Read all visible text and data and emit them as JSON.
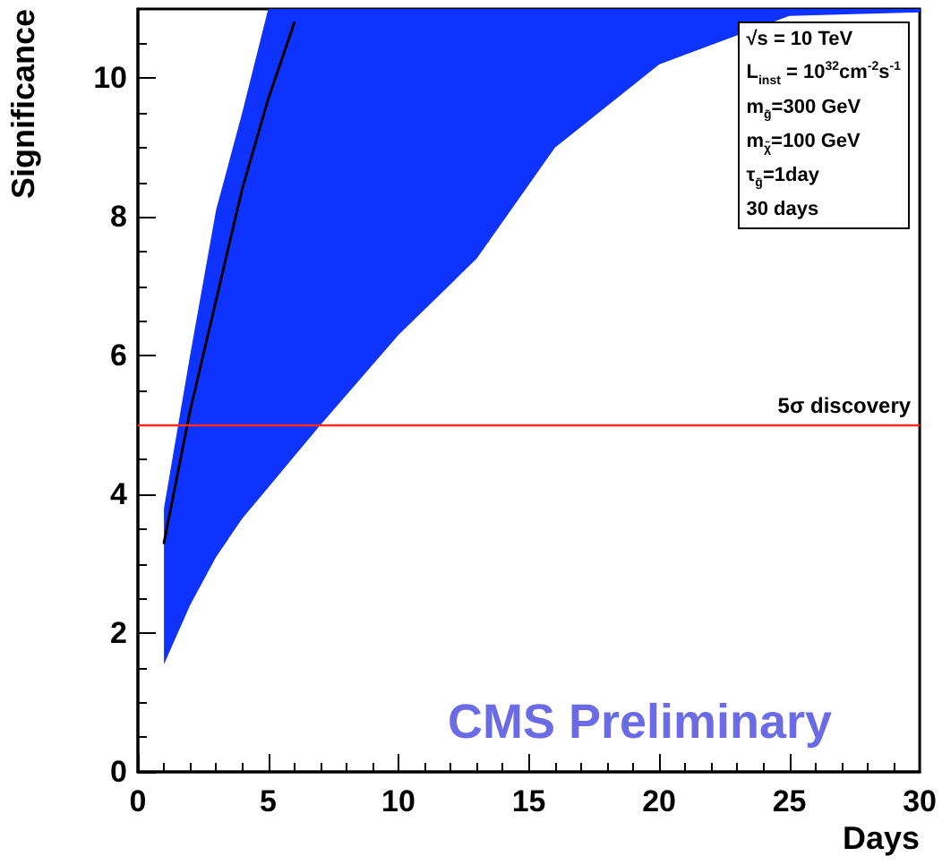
{
  "chart_data": {
    "type": "line",
    "xlabel": "Days",
    "ylabel": "Significance",
    "x": [
      1,
      2,
      3,
      4,
      5,
      6,
      7,
      10,
      13,
      16,
      20,
      25,
      30
    ],
    "series": [
      {
        "color": "#000000",
        "values": [
          3.3,
          5.2,
          6.8,
          8.4,
          9.7,
          10.8,
          null,
          null,
          null,
          null,
          null,
          null,
          null
        ]
      },
      {
        "color": "#0f33ff",
        "values": [
          null,
          null,
          null,
          null,
          null,
          null,
          null,
          null,
          null,
          null,
          null,
          null,
          null
        ],
        "lower": [
          1.55,
          2.4,
          3.1,
          3.65,
          4.1,
          4.55,
          5.0,
          6.3,
          7.4,
          9.0,
          10.2,
          10.9,
          10.95
        ],
        "upper": [
          3.8,
          6.0,
          8.1,
          9.5,
          11,
          11,
          11,
          11,
          11,
          11,
          11,
          11,
          11
        ]
      }
    ],
    "xlim": [
      0,
      30
    ],
    "xticks": [
      0,
      5,
      10,
      15,
      20,
      25,
      30
    ],
    "ylim": [
      0,
      11
    ],
    "yticks": [
      0,
      2,
      4,
      6,
      8,
      10
    ],
    "grid": false,
    "marker": "none",
    "line_style": "solid",
    "ref_lines": [
      {
        "axis": "y",
        "value": 5,
        "label": "5σ discovery",
        "color": "#ff2a1a"
      }
    ],
    "annotations": [
      "√s = 10 TeV",
      "L$_{inst}$ = 10$^{32}$cm$^{-2}$s$^{-1}$",
      "m$_{g̃}$=300 GeV",
      "m$_{χ̃}$=100 GeV",
      "τ$_{g̃}$=1day",
      "30 days",
      "CMS Preliminary"
    ]
  }
}
